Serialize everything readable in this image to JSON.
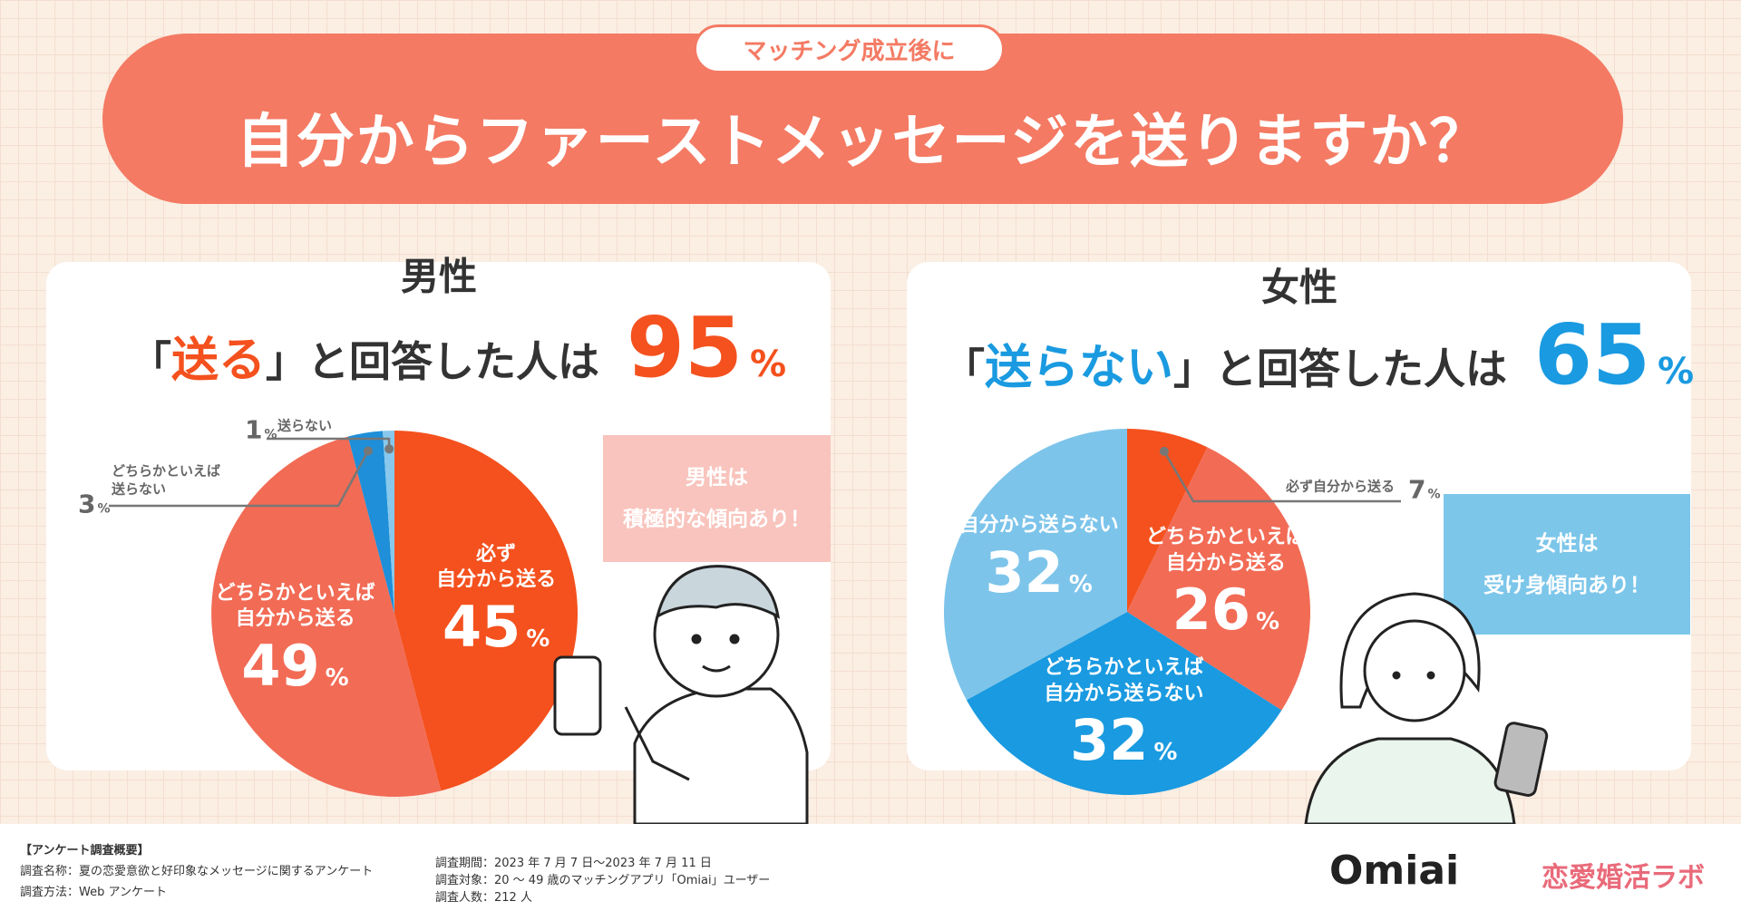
{
  "header": {
    "badge": "マッチング成立後に",
    "title": "自分からファーストメッセージを送りますか？"
  },
  "chart_data": [
    {
      "type": "pie",
      "title": "男性",
      "headline_pre": "「",
      "headline_em": "送る",
      "headline_post": "」と回答した人は",
      "headline_value": 95,
      "headline_unit": "%",
      "accent": "#f4511e",
      "categories": [
        "必ず\n自分から送る",
        "どちらかといえば\n自分から送る",
        "どちらかといえば\n送らない",
        "送らない"
      ],
      "values": [
        45,
        49,
        3,
        1
      ],
      "unit": "%",
      "colors": [
        "#f4511e",
        "#f26b55",
        "#1e8fd8",
        "#88c8ec"
      ],
      "callout": "男性は\n積極的な傾向あり！",
      "callout_color": "#f8c4bd"
    },
    {
      "type": "pie",
      "title": "女性",
      "headline_pre": "「",
      "headline_em": "送らない",
      "headline_post": "」と回答した人は",
      "headline_value": 65,
      "headline_unit": "%",
      "accent": "#1a9ae0",
      "categories": [
        "必ず自分から送る",
        "どちらかといえば\n自分から送る",
        "どちらかといえば\n自分から送らない",
        "自分から送らない"
      ],
      "values": [
        7,
        26,
        32,
        32
      ],
      "unit": "%",
      "colors": [
        "#f4511e",
        "#f26b55",
        "#1a9ae0",
        "#7dc4ea"
      ],
      "callout": "女性は\n受け身傾向あり！",
      "callout_color": "#7cc6ea"
    }
  ],
  "footer": {
    "heading": "【アンケート調査概要】",
    "name": "調査名称：夏の恋愛意欲と好印象なメッセージに関するアンケート",
    "method": "調査方法：Web アンケート",
    "period": "調査期間：2023 年 7 月 7 日〜2023 年 7 月 11 日",
    "target": "調査対象：20 〜 49 歳のマッチングアプリ「Omiai」ユーザー",
    "count": "調査人数：212 人",
    "logo1": "Omiai",
    "logo2": "恋愛婚活ラボ"
  }
}
